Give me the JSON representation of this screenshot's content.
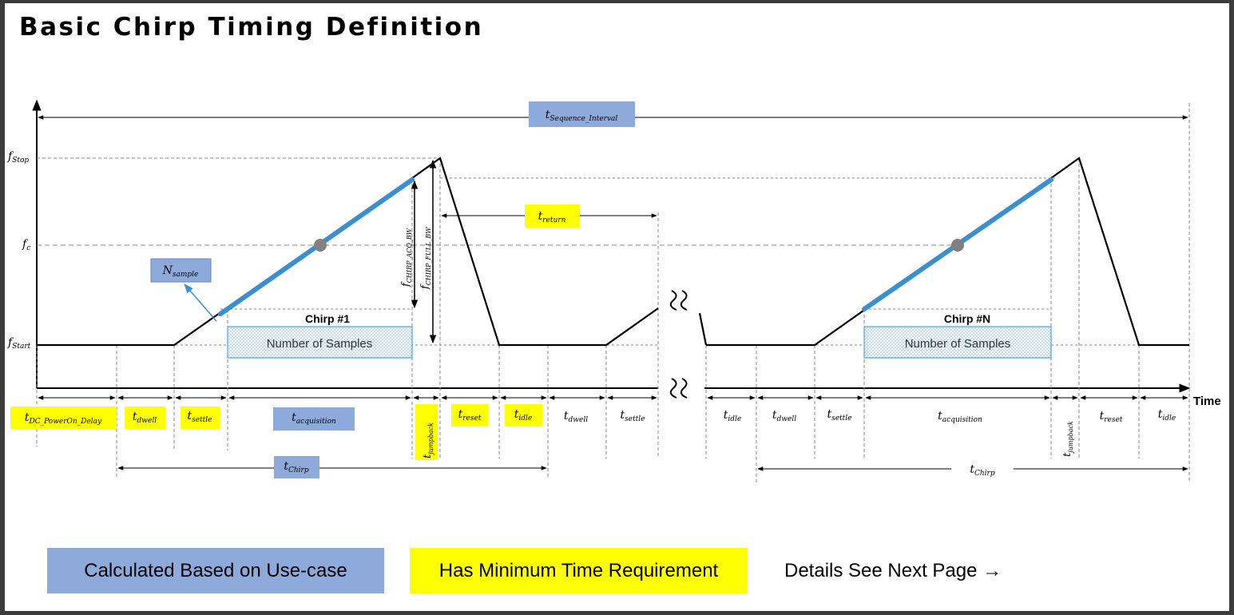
{
  "title": "Basic Chirp Timing Definition",
  "colors": {
    "calculated": "#8eaadb",
    "minimum": "#ffff00",
    "ramp_acquisition": "#3a8fd0",
    "samples_box": "#4aa3df",
    "line": "#000000",
    "dashed_guide": "#8a8a8a",
    "center_marker": "#808080"
  },
  "y_axis": {
    "f_stop": {
      "main": "f",
      "sub": "Stop"
    },
    "f_c": {
      "main": "f",
      "sub": "c"
    },
    "f_start": {
      "main": "f",
      "sub": "Start"
    }
  },
  "x_axis_label": "Time",
  "top_label": {
    "main": "t",
    "sub": "Sequence_Interval"
  },
  "return_label": {
    "main": "t",
    "sub": "return"
  },
  "n_sample_label": {
    "main": "N",
    "sub": "sample"
  },
  "bw_labels": {
    "acq": {
      "main": "f",
      "sub": "CHIRP_ACQ_BW"
    },
    "full": {
      "main": "f",
      "sub": "CHIRP_FULL_BW"
    }
  },
  "chirp_first": {
    "title": "Chirp #1",
    "samples_label": "Number of Samples"
  },
  "chirp_last": {
    "title": "Chirp #N",
    "samples_label": "Number of Samples"
  },
  "segments_left": [
    {
      "main": "t",
      "sub": "DC_PowerOn_Delay",
      "highlight": "minimum"
    },
    {
      "main": "t",
      "sub": "dwell",
      "highlight": "minimum"
    },
    {
      "main": "t",
      "sub": "settle",
      "highlight": "minimum"
    },
    {
      "main": "t",
      "sub": "acquisition",
      "highlight": "calculated"
    },
    {
      "main": "t",
      "sub": "jumpback",
      "highlight": "minimum"
    },
    {
      "main": "t",
      "sub": "reset",
      "highlight": "minimum"
    },
    {
      "main": "t",
      "sub": "idle",
      "highlight": "minimum"
    },
    {
      "main": "t",
      "sub": "dwell",
      "highlight": "none"
    },
    {
      "main": "t",
      "sub": "settle",
      "highlight": "none"
    }
  ],
  "segments_right": [
    {
      "main": "t",
      "sub": "idle"
    },
    {
      "main": "t",
      "sub": "dwell"
    },
    {
      "main": "t",
      "sub": "settle"
    },
    {
      "main": "t",
      "sub": "acquisition"
    },
    {
      "main": "t",
      "sub": "jumpback"
    },
    {
      "main": "t",
      "sub": "reset"
    },
    {
      "main": "t",
      "sub": "idle"
    }
  ],
  "chirp_period_left": {
    "main": "t",
    "sub": "Chirp",
    "highlight": "calculated"
  },
  "chirp_period_right": {
    "main": "t",
    "sub": "Chirp"
  },
  "legend": {
    "calculated": "Calculated Based on Use-case",
    "minimum": "Has Minimum Time Requirement",
    "next": "Details See Next Page →"
  }
}
